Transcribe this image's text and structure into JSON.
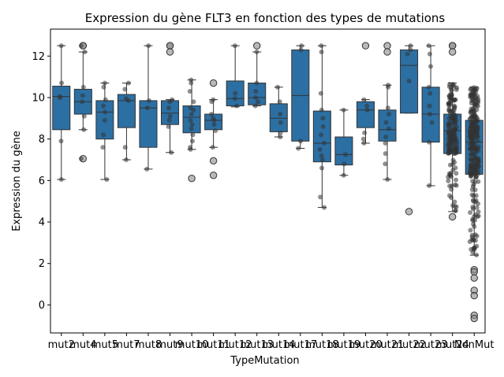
{
  "chart_data": {
    "type": "box",
    "title": "Expression du gène FLT3 en fonction des types de mutations",
    "xlabel": "TypeMutation",
    "ylabel": "Expression du gène",
    "ylim": [
      -1.35,
      13.3
    ],
    "yticks": [
      0,
      2,
      4,
      6,
      8,
      10,
      12
    ],
    "box_color": "#2c6fa3",
    "point_color": "#333333",
    "categories": [
      "mut2",
      "mut4",
      "mut5",
      "mut7",
      "mut8",
      "mut9",
      "mut10",
      "mut11",
      "mut12",
      "mut13",
      "mut14",
      "mut17",
      "mut18",
      "mut19",
      "mut20",
      "mut21",
      "mut22",
      "mut23",
      "mut24",
      "NonMut"
    ],
    "boxes": [
      {
        "q1": 8.45,
        "median": 10.05,
        "q3": 10.55,
        "whislo": 6.05,
        "whishi": 12.5,
        "fliers": [],
        "points": [
          12.5,
          10.7,
          10.05,
          10.0,
          7.9,
          6.05
        ]
      },
      {
        "q1": 9.2,
        "median": 9.8,
        "q3": 10.4,
        "whislo": 8.45,
        "whishi": 12.2,
        "fliers": [
          12.5,
          12.5,
          7.05
        ],
        "points": [
          12.5,
          12.2,
          10.5,
          10.1,
          9.8,
          9.1,
          8.45,
          7.05
        ]
      },
      {
        "q1": 8.0,
        "median": 9.3,
        "q3": 9.85,
        "whislo": 6.05,
        "whishi": 10.7,
        "fliers": [],
        "points": [
          10.7,
          10.5,
          9.9,
          9.6,
          9.3,
          8.9,
          8.2,
          7.6,
          6.05
        ]
      },
      {
        "q1": 8.55,
        "median": 9.85,
        "q3": 10.15,
        "whislo": 7.0,
        "whishi": 10.7,
        "fliers": [],
        "points": [
          10.7,
          10.4,
          9.95,
          9.85,
          7.6,
          7.0
        ]
      },
      {
        "q1": 7.6,
        "median": 9.5,
        "q3": 9.85,
        "whislo": 6.55,
        "whishi": 12.5,
        "fliers": [],
        "points": [
          12.5,
          9.85,
          9.5,
          6.55
        ]
      },
      {
        "q1": 8.7,
        "median": 9.25,
        "q3": 9.85,
        "whislo": 7.35,
        "whishi": 9.9,
        "fliers": [
          12.5,
          12.5,
          12.2
        ],
        "points": [
          9.9,
          9.8,
          9.5,
          9.1,
          8.9,
          8.6,
          7.35
        ]
      },
      {
        "q1": 8.3,
        "median": 9.05,
        "q3": 9.6,
        "whislo": 7.5,
        "whishi": 10.85,
        "fliers": [
          6.1
        ],
        "points": [
          10.85,
          10.7,
          10.3,
          9.8,
          9.5,
          9.4,
          9.2,
          8.9,
          8.7,
          8.5,
          8.2,
          7.9,
          7.6,
          7.5
        ]
      },
      {
        "q1": 8.45,
        "median": 8.9,
        "q3": 9.2,
        "whislo": 7.6,
        "whishi": 9.9,
        "fliers": [
          10.7,
          6.95,
          6.25
        ],
        "points": [
          9.9,
          9.8,
          9.2,
          9.0,
          8.9,
          8.7,
          8.4,
          7.6
        ]
      },
      {
        "q1": 9.6,
        "median": 9.95,
        "q3": 10.8,
        "whislo": 9.55,
        "whishi": 12.5,
        "fliers": [],
        "points": [
          12.5,
          10.2,
          9.95,
          9.6
        ]
      },
      {
        "q1": 9.65,
        "median": 10.0,
        "q3": 10.7,
        "whislo": 9.6,
        "whishi": 12.2,
        "fliers": [
          12.5
        ],
        "points": [
          12.2,
          10.7,
          10.3,
          10.0,
          9.8,
          9.6
        ]
      },
      {
        "q1": 8.35,
        "median": 9.0,
        "q3": 9.7,
        "whislo": 8.1,
        "whishi": 10.5,
        "fliers": [],
        "points": [
          10.5,
          9.8,
          9.2,
          8.8,
          8.3,
          8.1
        ]
      },
      {
        "q1": 7.9,
        "median": 10.1,
        "q3": 12.3,
        "whislo": 7.55,
        "whishi": 12.5,
        "fliers": [],
        "points": [
          12.5,
          12.3,
          7.9,
          7.55
        ]
      },
      {
        "q1": 6.9,
        "median": 7.8,
        "q3": 9.35,
        "whislo": 4.7,
        "whishi": 12.5,
        "fliers": [],
        "points": [
          12.5,
          12.2,
          10.2,
          9.4,
          9.0,
          8.6,
          8.2,
          7.8,
          7.5,
          7.2,
          7.0,
          6.6,
          5.2,
          4.7
        ]
      },
      {
        "q1": 6.75,
        "median": 7.25,
        "q3": 8.1,
        "whislo": 6.25,
        "whishi": 9.4,
        "fliers": [],
        "points": [
          9.4,
          7.25,
          6.8,
          6.25
        ]
      },
      {
        "q1": 8.55,
        "median": 9.4,
        "q3": 9.8,
        "whislo": 7.8,
        "whishi": 9.9,
        "fliers": [
          12.5
        ],
        "points": [
          9.9,
          9.6,
          9.4,
          8.3,
          8.0,
          7.8
        ]
      },
      {
        "q1": 7.9,
        "median": 8.45,
        "q3": 9.4,
        "whislo": 6.05,
        "whishi": 10.6,
        "fliers": [
          12.5,
          12.2
        ],
        "points": [
          10.6,
          10.5,
          9.5,
          9.2,
          8.8,
          8.5,
          8.1,
          7.8,
          7.3,
          6.8,
          6.05
        ]
      },
      {
        "q1": 9.25,
        "median": 11.55,
        "q3": 12.3,
        "whislo": 9.25,
        "whishi": 12.5,
        "fliers": [
          4.5
        ],
        "points": [
          12.5,
          12.3,
          12.1,
          10.8
        ]
      },
      {
        "q1": 7.85,
        "median": 9.2,
        "q3": 10.5,
        "whislo": 5.75,
        "whishi": 12.5,
        "fliers": [],
        "points": [
          12.5,
          12.1,
          11.5,
          10.5,
          10.2,
          9.6,
          9.2,
          8.8,
          7.85,
          5.75
        ]
      },
      {
        "q1": 7.3,
        "median": 8.4,
        "q3": 9.2,
        "whislo": 4.5,
        "whishi": 10.7,
        "fliers": [
          12.5,
          12.5,
          12.2,
          4.25
        ],
        "dense": true,
        "points": []
      },
      {
        "q1": 6.3,
        "median": 7.85,
        "q3": 8.9,
        "whislo": 2.4,
        "whishi": 10.5,
        "fliers": [
          1.7,
          1.6,
          1.3,
          0.7,
          0.45,
          -0.5,
          -0.65
        ],
        "dense": true,
        "points": []
      }
    ]
  }
}
